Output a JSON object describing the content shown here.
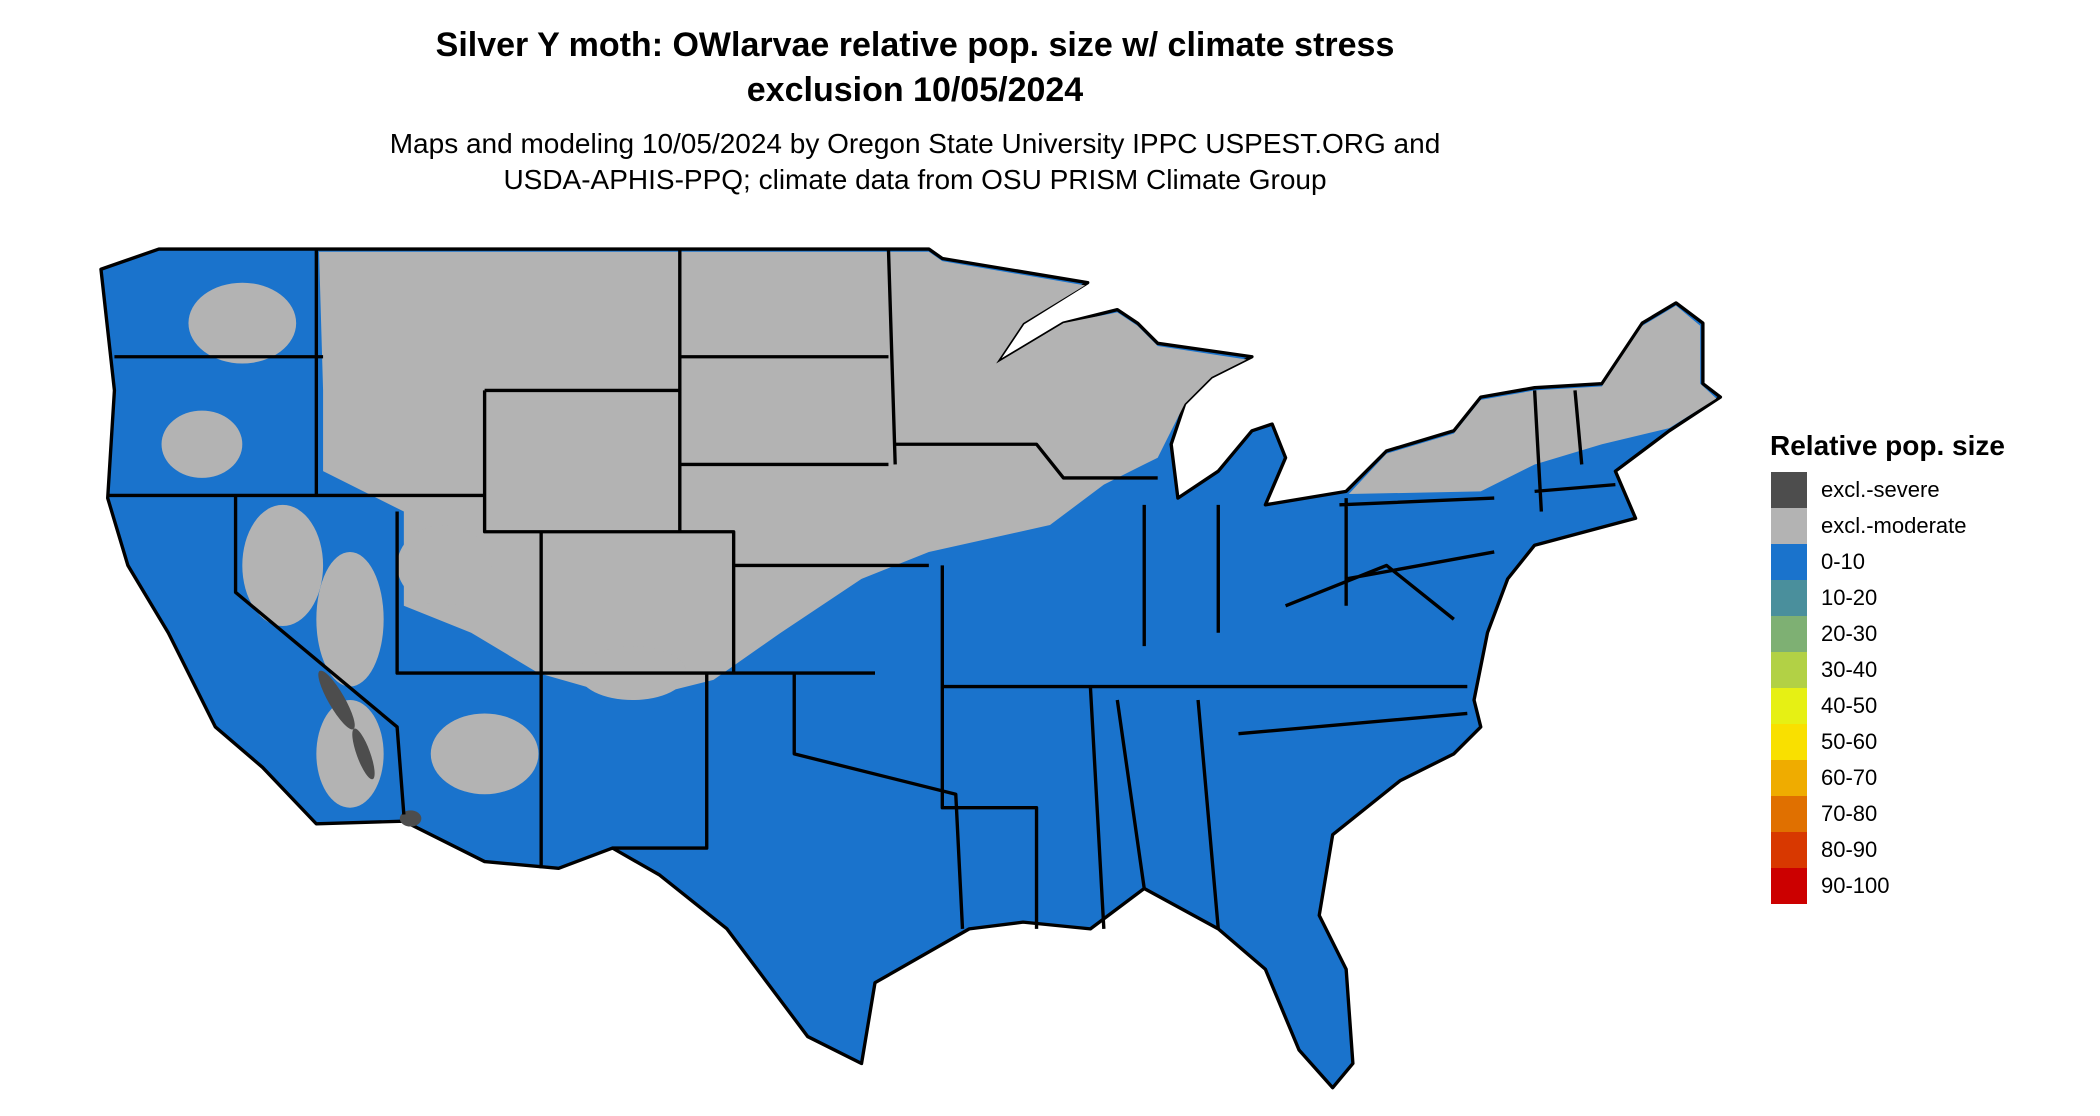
{
  "title": {
    "line1": "Silver Y moth: OWlarvae relative pop. size w/ climate stress",
    "line2": "exclusion 10/05/2024"
  },
  "subtitle": {
    "line1": "Maps and modeling 10/05/2024 by Oregon State University IPPC USPEST.ORG and",
    "line2": "USDA-APHIS-PPQ; climate data from OSU PRISM Climate Group"
  },
  "map_colors": {
    "land_low": "#1a73cc",
    "excluded_moderate": "#b3b3b3",
    "excluded_severe": "#4d4d4d",
    "borders": "#000000"
  },
  "legend": {
    "title": "Relative pop. size",
    "items": [
      {
        "label": "excl.-severe",
        "color": "#4d4d4d"
      },
      {
        "label": "excl.-moderate",
        "color": "#b3b3b3"
      },
      {
        "label": "0-10",
        "color": "#1a73cc"
      },
      {
        "label": "10-20",
        "color": "#4a8f9c"
      },
      {
        "label": "20-30",
        "color": "#7eb073"
      },
      {
        "label": "30-40",
        "color": "#b2d145"
      },
      {
        "label": "40-50",
        "color": "#e6f014"
      },
      {
        "label": "50-60",
        "color": "#f9e000"
      },
      {
        "label": "60-70",
        "color": "#efac00"
      },
      {
        "label": "70-80",
        "color": "#e07000"
      },
      {
        "label": "80-90",
        "color": "#d83800"
      },
      {
        "label": "90-100",
        "color": "#cc0000"
      }
    ]
  }
}
